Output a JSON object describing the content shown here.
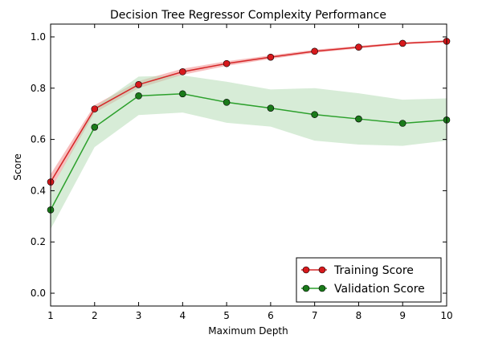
{
  "chart_data": {
    "type": "line",
    "title": "Decision Tree Regressor Complexity Performance",
    "xlabel": "Maximum Depth",
    "ylabel": "Score",
    "xlim": [
      1,
      10
    ],
    "ylim": [
      -0.05,
      1.05
    ],
    "x": [
      1,
      2,
      3,
      4,
      5,
      6,
      7,
      8,
      9,
      10
    ],
    "xticks": [
      "1",
      "2",
      "3",
      "4",
      "5",
      "6",
      "7",
      "8",
      "9",
      "10"
    ],
    "yticks": [
      {
        "value": 0.0,
        "label": "0.0"
      },
      {
        "value": 0.2,
        "label": "0.2"
      },
      {
        "value": 0.4,
        "label": "0.4"
      },
      {
        "value": 0.6,
        "label": "0.6"
      },
      {
        "value": 0.8,
        "label": "0.8"
      },
      {
        "value": 1.0,
        "label": "1.0"
      }
    ],
    "grid": false,
    "legend_position": "lower-right",
    "series": [
      {
        "name": "Training Score",
        "color": "#d62728",
        "marker_fill": "#d7191c",
        "band_color": "#f4aaaa",
        "values": [
          0.434,
          0.719,
          0.814,
          0.864,
          0.896,
          0.921,
          0.944,
          0.96,
          0.975,
          0.983
        ],
        "upper": [
          0.464,
          0.734,
          0.828,
          0.876,
          0.905,
          0.928,
          0.95,
          0.965,
          0.979,
          0.987
        ],
        "lower": [
          0.404,
          0.704,
          0.8,
          0.852,
          0.887,
          0.914,
          0.938,
          0.955,
          0.971,
          0.979
        ]
      },
      {
        "name": "Validation Score",
        "color": "#2ca02c",
        "marker_fill": "#1a7a1a",
        "band_color": "#b6dcb6",
        "values": [
          0.325,
          0.648,
          0.77,
          0.778,
          0.745,
          0.722,
          0.697,
          0.68,
          0.663,
          0.676
        ],
        "upper": [
          0.4,
          0.725,
          0.845,
          0.85,
          0.825,
          0.795,
          0.8,
          0.78,
          0.755,
          0.76
        ],
        "lower": [
          0.25,
          0.57,
          0.695,
          0.705,
          0.665,
          0.65,
          0.595,
          0.58,
          0.575,
          0.595
        ]
      }
    ]
  }
}
